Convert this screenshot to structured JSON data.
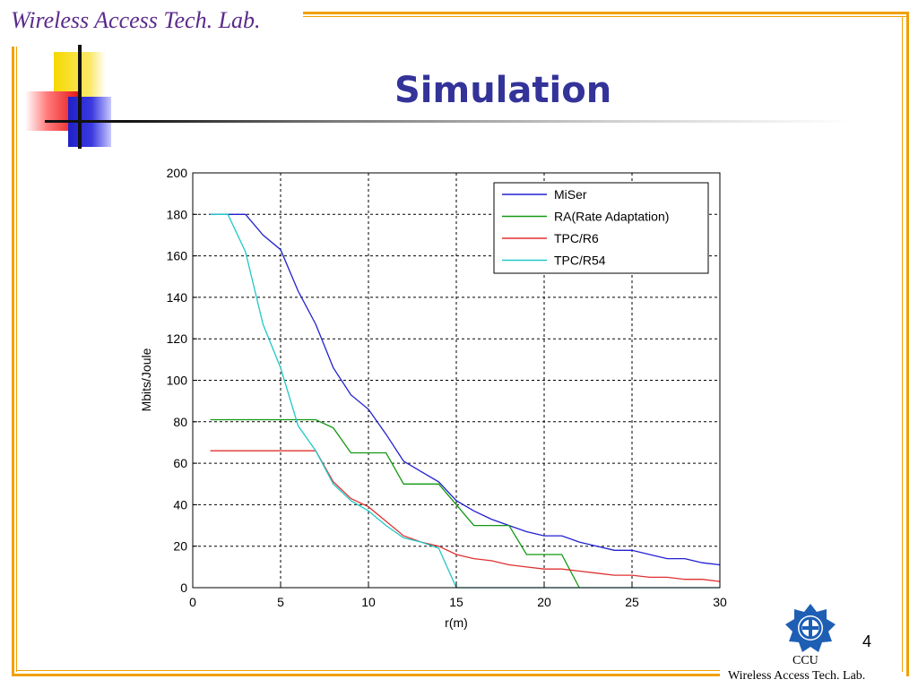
{
  "header": {
    "lab_name": "Wireless Access Tech. Lab."
  },
  "slide": {
    "title": "Simulation",
    "page_number": "4"
  },
  "footer": {
    "org": "CCU",
    "lab": "Wireless Access Tech. Lab."
  },
  "colors": {
    "frame": "#f0a000",
    "title": "#333399",
    "header_text": "#5a2a8c"
  },
  "chart_data": {
    "type": "line",
    "title": "",
    "xlabel": "r(m)",
    "ylabel": "Mbits/Joule",
    "xlim": [
      0,
      30
    ],
    "ylim": [
      0,
      200
    ],
    "xticks": [
      0,
      5,
      10,
      15,
      20,
      25,
      30
    ],
    "yticks": [
      0,
      20,
      40,
      60,
      80,
      100,
      120,
      140,
      160,
      180,
      200
    ],
    "grid": true,
    "legend_position": "top-right",
    "series": [
      {
        "name": "MiSer",
        "color": "#2020d0",
        "points": [
          [
            1,
            180
          ],
          [
            3,
            180
          ],
          [
            4,
            170
          ],
          [
            5,
            163
          ],
          [
            6,
            143
          ],
          [
            7,
            127
          ],
          [
            8,
            106
          ],
          [
            9,
            93
          ],
          [
            10,
            86
          ],
          [
            11,
            74
          ],
          [
            12,
            61
          ],
          [
            13,
            56
          ],
          [
            14,
            51
          ],
          [
            15,
            42
          ],
          [
            16,
            37
          ],
          [
            17,
            33
          ],
          [
            18,
            30
          ],
          [
            19,
            27
          ],
          [
            20,
            25
          ],
          [
            21,
            25
          ],
          [
            22,
            22
          ],
          [
            23,
            20
          ],
          [
            24,
            18
          ],
          [
            25,
            18
          ],
          [
            26,
            16
          ],
          [
            27,
            14
          ],
          [
            28,
            14
          ],
          [
            29,
            12
          ],
          [
            30,
            11
          ]
        ]
      },
      {
        "name": "RA(Rate Adaptation)",
        "color": "#119911",
        "points": [
          [
            1,
            81
          ],
          [
            7,
            81
          ],
          [
            8,
            77
          ],
          [
            9,
            65
          ],
          [
            11,
            65
          ],
          [
            12,
            50
          ],
          [
            14,
            50
          ],
          [
            15,
            40
          ],
          [
            16,
            30
          ],
          [
            18,
            30
          ],
          [
            19,
            16
          ],
          [
            21,
            16
          ],
          [
            22,
            0
          ]
        ]
      },
      {
        "name": "TPC/R6",
        "color": "#e03030",
        "points": [
          [
            1,
            66
          ],
          [
            7,
            66
          ],
          [
            8,
            51
          ],
          [
            9,
            43
          ],
          [
            10,
            39
          ],
          [
            11,
            32
          ],
          [
            12,
            25
          ],
          [
            13,
            22
          ],
          [
            14,
            20
          ],
          [
            15,
            16
          ],
          [
            16,
            14
          ],
          [
            17,
            13
          ],
          [
            18,
            11
          ],
          [
            19,
            10
          ],
          [
            20,
            9
          ],
          [
            21,
            9
          ],
          [
            22,
            8
          ],
          [
            23,
            7
          ],
          [
            24,
            6
          ],
          [
            25,
            6
          ],
          [
            26,
            5
          ],
          [
            27,
            5
          ],
          [
            28,
            4
          ],
          [
            29,
            4
          ],
          [
            30,
            3
          ]
        ]
      },
      {
        "name": "TPC/R54",
        "color": "#20c8c8",
        "points": [
          [
            1,
            180
          ],
          [
            2,
            180
          ],
          [
            3,
            162
          ],
          [
            4,
            127
          ],
          [
            5,
            106
          ],
          [
            6,
            78
          ],
          [
            7,
            66
          ],
          [
            8,
            50
          ],
          [
            9,
            42
          ],
          [
            10,
            37
          ],
          [
            11,
            30
          ],
          [
            12,
            24
          ],
          [
            13,
            22
          ],
          [
            14,
            19
          ],
          [
            15,
            0
          ],
          [
            30,
            0
          ]
        ]
      }
    ]
  }
}
